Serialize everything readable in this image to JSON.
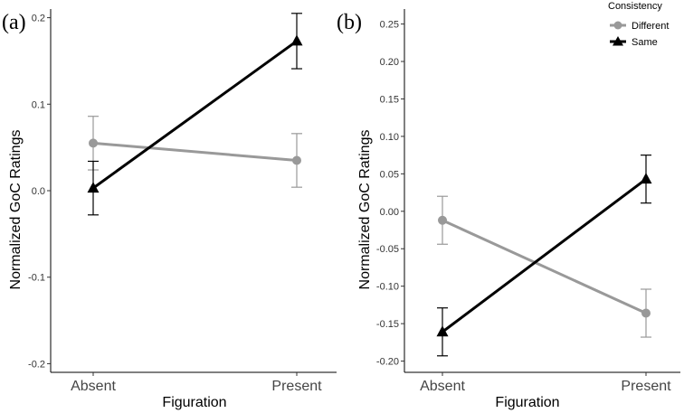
{
  "chart_data": [
    {
      "panel": "(a)",
      "type": "line",
      "categories": [
        "Absent",
        "Present"
      ],
      "xlabel": "Figuration",
      "ylabel": "Normalized GoC Ratings",
      "ylim": [
        -0.21,
        0.21
      ],
      "yticks": [
        -0.2,
        -0.1,
        0.0,
        0.1,
        0.2
      ],
      "ytick_labels": [
        "-0.2",
        "-0.1",
        "0.0",
        "0.1",
        "0.2"
      ],
      "series": [
        {
          "name": "Different",
          "color": "#999999",
          "marker": "circle",
          "values": [
            0.055,
            0.035
          ],
          "errors": [
            0.031,
            0.031
          ]
        },
        {
          "name": "Same",
          "color": "#000000",
          "marker": "triangle",
          "values": [
            0.003,
            0.173
          ],
          "errors": [
            0.031,
            0.032
          ]
        }
      ]
    },
    {
      "panel": "(b)",
      "type": "line",
      "categories": [
        "Absent",
        "Present"
      ],
      "xlabel": "Figuration",
      "ylabel": "Normalized GoC Ratings",
      "ylim": [
        -0.215,
        0.27
      ],
      "yticks": [
        -0.2,
        -0.15,
        -0.1,
        -0.05,
        0.0,
        0.05,
        0.1,
        0.15,
        0.2,
        0.25
      ],
      "ytick_labels": [
        "-0.20",
        "-0.15",
        "-0.10",
        "-0.05",
        "0.00",
        "0.05",
        "0.10",
        "0.15",
        "0.20",
        "0.25"
      ],
      "series": [
        {
          "name": "Different",
          "color": "#999999",
          "marker": "circle",
          "values": [
            -0.012,
            -0.136
          ],
          "errors": [
            0.032,
            0.032
          ]
        },
        {
          "name": "Same",
          "color": "#000000",
          "marker": "triangle",
          "values": [
            -0.161,
            0.043
          ],
          "errors": [
            0.032,
            0.032
          ]
        }
      ]
    }
  ],
  "legend": {
    "title": "Consistency",
    "items": [
      {
        "name": "Different",
        "color": "#999999",
        "marker": "circle"
      },
      {
        "name": "Same",
        "color": "#000000",
        "marker": "triangle"
      }
    ]
  }
}
